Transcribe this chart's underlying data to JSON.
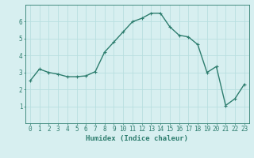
{
  "x": [
    0,
    1,
    2,
    3,
    4,
    5,
    6,
    7,
    8,
    9,
    10,
    11,
    12,
    13,
    14,
    15,
    16,
    17,
    18,
    19,
    20,
    21,
    22,
    23
  ],
  "y": [
    2.5,
    3.2,
    3.0,
    2.9,
    2.75,
    2.75,
    2.8,
    3.05,
    4.2,
    4.8,
    5.4,
    6.0,
    6.2,
    6.5,
    6.5,
    5.7,
    5.2,
    5.1,
    4.65,
    3.0,
    3.35,
    1.05,
    1.45,
    2.3
  ],
  "line_color": "#2d7d6e",
  "marker": "+",
  "bg_color": "#d7eff0",
  "grid_color": "#b8dfe0",
  "axis_color": "#2d7d6e",
  "xlabel": "Humidex (Indice chaleur)",
  "xlim": [
    -0.5,
    23.5
  ],
  "ylim": [
    0,
    7
  ],
  "yticks": [
    1,
    2,
    3,
    4,
    5,
    6
  ],
  "xticks": [
    0,
    1,
    2,
    3,
    4,
    5,
    6,
    7,
    8,
    9,
    10,
    11,
    12,
    13,
    14,
    15,
    16,
    17,
    18,
    19,
    20,
    21,
    22,
    23
  ],
  "xlabel_fontsize": 6.5,
  "tick_fontsize": 5.5,
  "line_width": 1.0,
  "marker_size": 3
}
